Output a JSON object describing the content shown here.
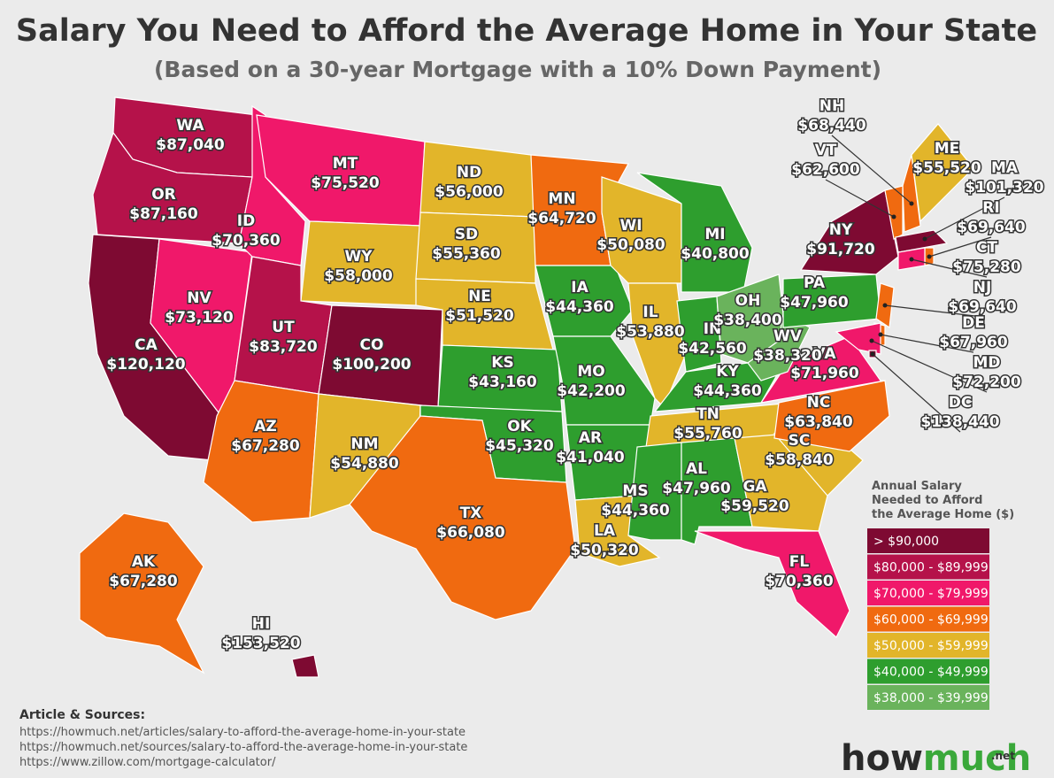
{
  "header": {
    "title": "Salary You Need to Afford the Average Home in Your State",
    "subtitle": "(Based on a 30-year Mortgage with a 10% Down Payment)"
  },
  "states": [
    {
      "abbr": "WA",
      "salary": "$87,040",
      "color": "#b5124a"
    },
    {
      "abbr": "OR",
      "salary": "$87,160",
      "color": "#b5124a"
    },
    {
      "abbr": "CA",
      "salary": "$120,120",
      "color": "#7e0a32"
    },
    {
      "abbr": "NV",
      "salary": "$73,120",
      "color": "#f0186a"
    },
    {
      "abbr": "ID",
      "salary": "$70,360",
      "color": "#f0186a"
    },
    {
      "abbr": "MT",
      "salary": "$75,520",
      "color": "#f0186a"
    },
    {
      "abbr": "WY",
      "salary": "$58,000",
      "color": "#e2b52a"
    },
    {
      "abbr": "UT",
      "salary": "$83,720",
      "color": "#b5124a"
    },
    {
      "abbr": "CO",
      "salary": "$100,200",
      "color": "#7e0a32"
    },
    {
      "abbr": "AZ",
      "salary": "$67,280",
      "color": "#f06a10"
    },
    {
      "abbr": "NM",
      "salary": "$54,880",
      "color": "#e2b52a"
    },
    {
      "abbr": "ND",
      "salary": "$56,000",
      "color": "#e2b52a"
    },
    {
      "abbr": "SD",
      "salary": "$55,360",
      "color": "#e2b52a"
    },
    {
      "abbr": "NE",
      "salary": "$51,520",
      "color": "#e2b52a"
    },
    {
      "abbr": "KS",
      "salary": "$43,160",
      "color": "#2e9e2e"
    },
    {
      "abbr": "OK",
      "salary": "$45,320",
      "color": "#2e9e2e"
    },
    {
      "abbr": "TX",
      "salary": "$66,080",
      "color": "#f06a10"
    },
    {
      "abbr": "MN",
      "salary": "$64,720",
      "color": "#f06a10"
    },
    {
      "abbr": "IA",
      "salary": "$44,360",
      "color": "#2e9e2e"
    },
    {
      "abbr": "MO",
      "salary": "$42,200",
      "color": "#2e9e2e"
    },
    {
      "abbr": "AR",
      "salary": "$41,040",
      "color": "#2e9e2e"
    },
    {
      "abbr": "LA",
      "salary": "$50,320",
      "color": "#e2b52a"
    },
    {
      "abbr": "WI",
      "salary": "$50,080",
      "color": "#e2b52a"
    },
    {
      "abbr": "IL",
      "salary": "$53,880",
      "color": "#e2b52a"
    },
    {
      "abbr": "MI",
      "salary": "$40,800",
      "color": "#2e9e2e"
    },
    {
      "abbr": "IN",
      "salary": "$42,560",
      "color": "#2e9e2e"
    },
    {
      "abbr": "OH",
      "salary": "$38,400",
      "color": "#6ab35c"
    },
    {
      "abbr": "KY",
      "salary": "$44,360",
      "color": "#2e9e2e"
    },
    {
      "abbr": "TN",
      "salary": "$55,760",
      "color": "#e2b52a"
    },
    {
      "abbr": "MS",
      "salary": "$44,360",
      "color": "#2e9e2e"
    },
    {
      "abbr": "AL",
      "salary": "$47,960",
      "color": "#2e9e2e"
    },
    {
      "abbr": "GA",
      "salary": "$59,520",
      "color": "#e2b52a"
    },
    {
      "abbr": "FL",
      "salary": "$70,360",
      "color": "#f0186a"
    },
    {
      "abbr": "SC",
      "salary": "$58,840",
      "color": "#e2b52a"
    },
    {
      "abbr": "NC",
      "salary": "$63,840",
      "color": "#f06a10"
    },
    {
      "abbr": "VA",
      "salary": "$71,960",
      "color": "#f0186a"
    },
    {
      "abbr": "WV",
      "salary": "$38,320",
      "color": "#6ab35c"
    },
    {
      "abbr": "PA",
      "salary": "$47,960",
      "color": "#2e9e2e"
    },
    {
      "abbr": "NY",
      "salary": "$91,720",
      "color": "#7e0a32"
    },
    {
      "abbr": "AK",
      "salary": "$67,280",
      "color": "#f06a10"
    },
    {
      "abbr": "HI",
      "salary": "$153,520",
      "color": "#7e0a32"
    },
    {
      "abbr": "NH",
      "salary": "$68,440",
      "color": "#f06a10"
    },
    {
      "abbr": "VT",
      "salary": "$62,600",
      "color": "#f06a10"
    },
    {
      "abbr": "ME",
      "salary": "$55,520",
      "color": "#e2b52a"
    },
    {
      "abbr": "MA",
      "salary": "$101,320",
      "color": "#7e0a32"
    },
    {
      "abbr": "RI",
      "salary": "$69,640",
      "color": "#f06a10"
    },
    {
      "abbr": "CT",
      "salary": "$75,280",
      "color": "#f0186a"
    },
    {
      "abbr": "NJ",
      "salary": "$69,640",
      "color": "#f06a10"
    },
    {
      "abbr": "DE",
      "salary": "$67,960",
      "color": "#f06a10"
    },
    {
      "abbr": "MD",
      "salary": "$72,200",
      "color": "#f0186a"
    },
    {
      "abbr": "DC",
      "salary": "$138,440",
      "color": "#7e0a32"
    }
  ],
  "legend": {
    "title": [
      "Annual Salary",
      "Needed to Afford",
      "the Average Home ($)"
    ],
    "items": [
      {
        "label": "> $90,000",
        "color": "#7e0a32"
      },
      {
        "label": "$80,000 - $89,999",
        "color": "#b5124a"
      },
      {
        "label": "$70,000 - $79,999",
        "color": "#f0186a"
      },
      {
        "label": "$60,000 - $69,999",
        "color": "#f06a10"
      },
      {
        "label": "$50,000 - $59,999",
        "color": "#e2b52a"
      },
      {
        "label": "$40,000 - $49,999",
        "color": "#2e9e2e"
      },
      {
        "label": "$38,000 - $39,999",
        "color": "#6ab35c"
      }
    ]
  },
  "sources": {
    "heading": "Article & Sources:",
    "links": [
      "https://howmuch.net/articles/salary-to-afford-the-average-home-in-your-state",
      "https://howmuch.net/sources/salary-to-afford-the-average-home-in-your-state",
      "https://www.zillow.com/mortgage-calculator/"
    ]
  },
  "logo": {
    "how": "how",
    "much": "much",
    "tld": ".net"
  }
}
